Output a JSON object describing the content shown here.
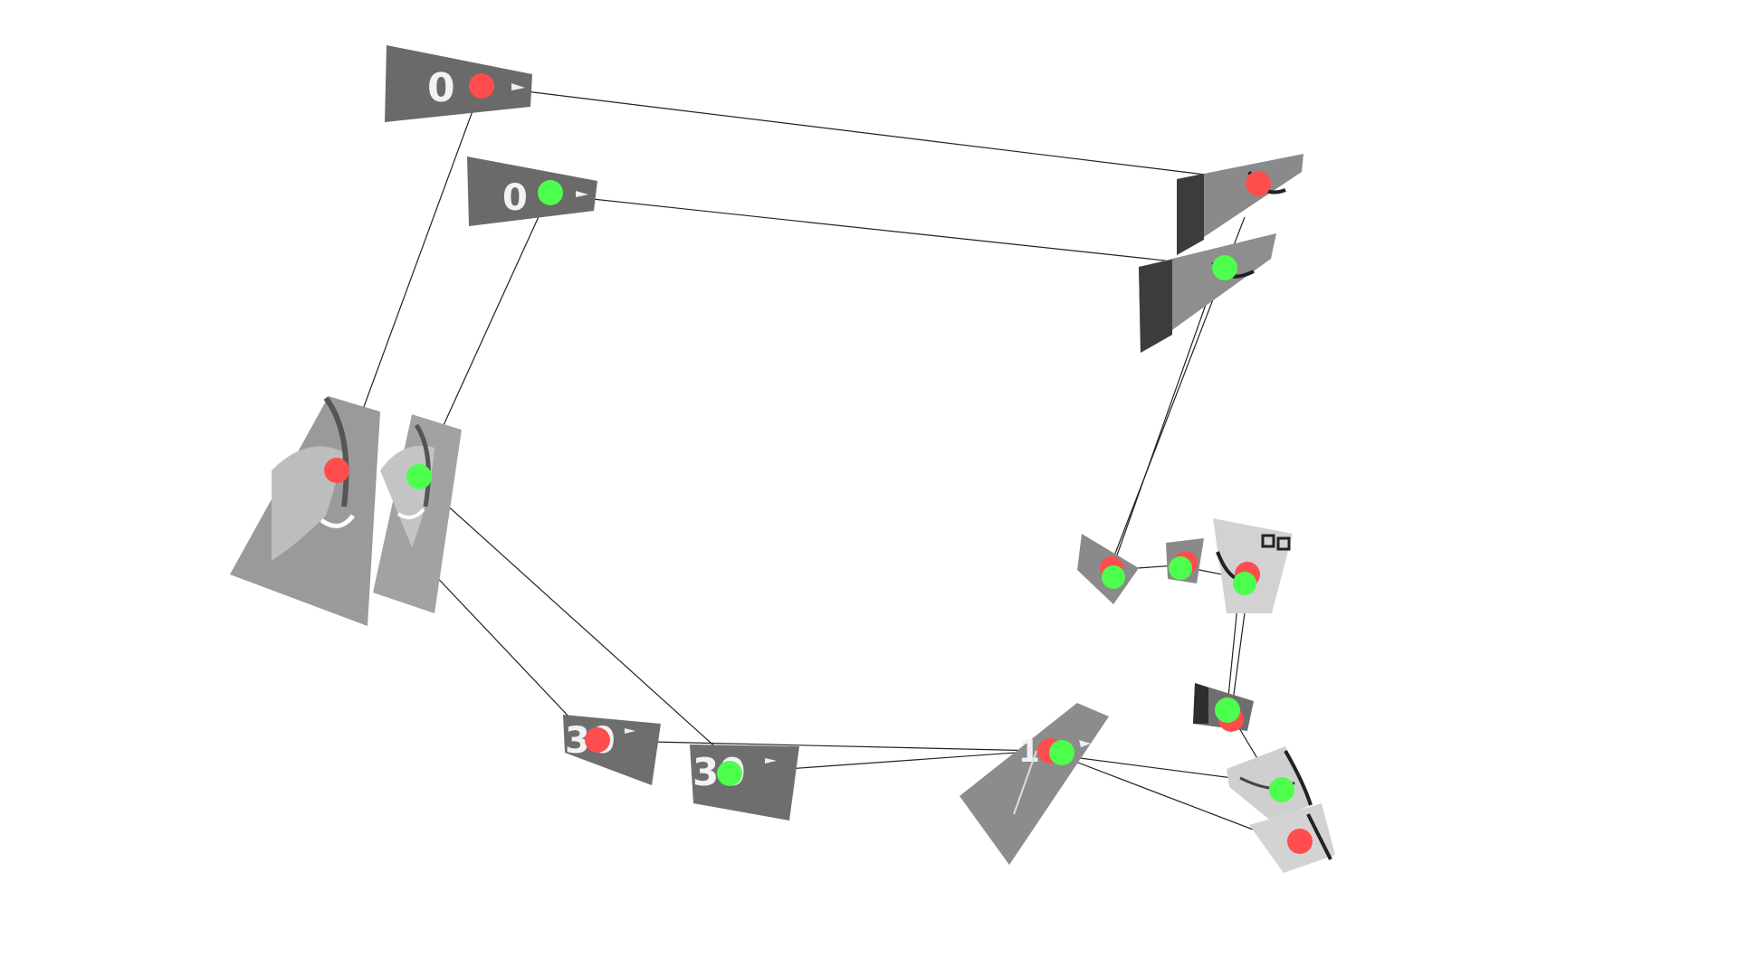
{
  "scene": {
    "background": "#ffffff",
    "tile_gray": "#6e6e6e",
    "tile_light": "#a9a9a9",
    "line_color": "#222222",
    "marker_red": "#ff4d4d",
    "marker_green": "#4dff4d"
  },
  "tile_labels": {
    "top_left_a": "0",
    "top_left_b": "0",
    "bottom_a": "30",
    "bottom_b": "30",
    "bottom_center": "10"
  }
}
